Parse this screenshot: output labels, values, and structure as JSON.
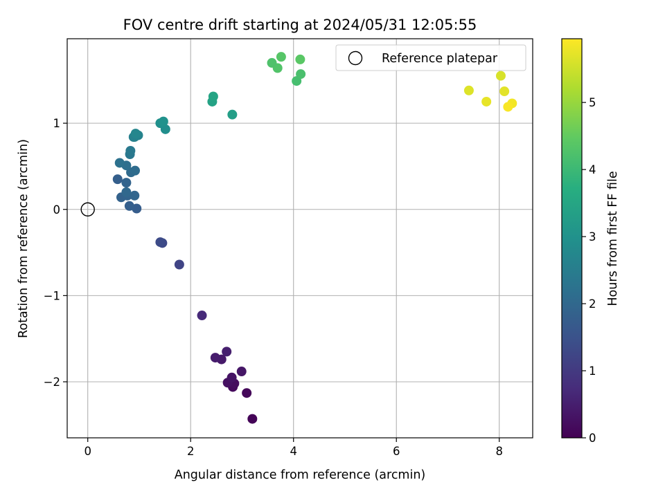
{
  "chart_data": {
    "type": "scatter",
    "title": "FOV centre drift starting at 2024/05/31 12:05:55",
    "xlabel": "Angular distance from reference (arcmin)",
    "ylabel": "Rotation from reference (arcmin)",
    "xlim": [
      -0.4,
      8.65
    ],
    "ylim": [
      -2.65,
      1.98
    ],
    "xticks": [
      0,
      2,
      4,
      6,
      8
    ],
    "xtick_labels": [
      "0",
      "2",
      "4",
      "6",
      "8"
    ],
    "yticks": [
      -2,
      -1,
      0,
      1
    ],
    "ytick_labels": [
      "−2",
      "−1",
      "0",
      "1"
    ],
    "grid": true,
    "legend": {
      "label": "Reference platepar",
      "location": "upper right"
    },
    "reference_point": {
      "x": 0,
      "y": 0
    },
    "colorbar": {
      "label": "Hours from first FF file",
      "range": [
        0,
        5.95
      ],
      "ticks": [
        0,
        1,
        2,
        3,
        4,
        5
      ],
      "tick_labels": [
        "0",
        "1",
        "2",
        "3",
        "4",
        "5"
      ],
      "colormap": "viridis"
    },
    "points": [
      {
        "x": 3.2,
        "y": -2.43,
        "hours": 0.05
      },
      {
        "x": 3.09,
        "y": -2.13,
        "hours": 0.1
      },
      {
        "x": 2.82,
        "y": -2.06,
        "hours": 0.15
      },
      {
        "x": 2.85,
        "y": -2.02,
        "hours": 0.2
      },
      {
        "x": 2.72,
        "y": -2.01,
        "hours": 0.25
      },
      {
        "x": 2.8,
        "y": -1.95,
        "hours": 0.3
      },
      {
        "x": 2.99,
        "y": -1.88,
        "hours": 0.35
      },
      {
        "x": 2.6,
        "y": -1.74,
        "hours": 0.4
      },
      {
        "x": 2.48,
        "y": -1.72,
        "hours": 0.45
      },
      {
        "x": 2.7,
        "y": -1.65,
        "hours": 0.5
      },
      {
        "x": 2.22,
        "y": -1.23,
        "hours": 0.7
      },
      {
        "x": 1.78,
        "y": -0.64,
        "hours": 1.2
      },
      {
        "x": 1.45,
        "y": -0.39,
        "hours": 1.3
      },
      {
        "x": 1.41,
        "y": -0.38,
        "hours": 1.35
      },
      {
        "x": 0.95,
        "y": 0.01,
        "hours": 1.75
      },
      {
        "x": 0.81,
        "y": 0.04,
        "hours": 1.8
      },
      {
        "x": 0.65,
        "y": 0.14,
        "hours": 1.85
      },
      {
        "x": 0.77,
        "y": 0.16,
        "hours": 1.9
      },
      {
        "x": 0.91,
        "y": 0.16,
        "hours": 1.95
      },
      {
        "x": 0.75,
        "y": 0.2,
        "hours": 2.0
      },
      {
        "x": 0.75,
        "y": 0.31,
        "hours": 1.9
      },
      {
        "x": 0.58,
        "y": 0.35,
        "hours": 1.8
      },
      {
        "x": 0.84,
        "y": 0.43,
        "hours": 2.05
      },
      {
        "x": 0.92,
        "y": 0.45,
        "hours": 2.1
      },
      {
        "x": 0.75,
        "y": 0.51,
        "hours": 2.15
      },
      {
        "x": 0.62,
        "y": 0.54,
        "hours": 2.2
      },
      {
        "x": 0.82,
        "y": 0.64,
        "hours": 2.35
      },
      {
        "x": 0.83,
        "y": 0.68,
        "hours": 2.4
      },
      {
        "x": 0.89,
        "y": 0.84,
        "hours": 2.55
      },
      {
        "x": 0.91,
        "y": 0.84,
        "hours": 2.6
      },
      {
        "x": 0.98,
        "y": 0.86,
        "hours": 2.65
      },
      {
        "x": 0.93,
        "y": 0.88,
        "hours": 2.7
      },
      {
        "x": 1.51,
        "y": 0.93,
        "hours": 2.9
      },
      {
        "x": 1.41,
        "y": 1.0,
        "hours": 2.95
      },
      {
        "x": 1.47,
        "y": 1.02,
        "hours": 3.0
      },
      {
        "x": 2.81,
        "y": 1.1,
        "hours": 3.3
      },
      {
        "x": 2.42,
        "y": 1.25,
        "hours": 3.4
      },
      {
        "x": 2.44,
        "y": 1.31,
        "hours": 3.45
      },
      {
        "x": 4.06,
        "y": 1.49,
        "hours": 4.15
      },
      {
        "x": 4.14,
        "y": 1.57,
        "hours": 4.2
      },
      {
        "x": 3.69,
        "y": 1.64,
        "hours": 4.3
      },
      {
        "x": 3.58,
        "y": 1.7,
        "hours": 4.25
      },
      {
        "x": 4.13,
        "y": 1.74,
        "hours": 4.4
      },
      {
        "x": 3.76,
        "y": 1.77,
        "hours": 4.35
      },
      {
        "x": 8.03,
        "y": 1.55,
        "hours": 5.6
      },
      {
        "x": 7.41,
        "y": 1.38,
        "hours": 5.65
      },
      {
        "x": 8.1,
        "y": 1.37,
        "hours": 5.7
      },
      {
        "x": 7.75,
        "y": 1.25,
        "hours": 5.75
      },
      {
        "x": 8.25,
        "y": 1.23,
        "hours": 5.85
      },
      {
        "x": 8.17,
        "y": 1.19,
        "hours": 5.9
      }
    ]
  }
}
